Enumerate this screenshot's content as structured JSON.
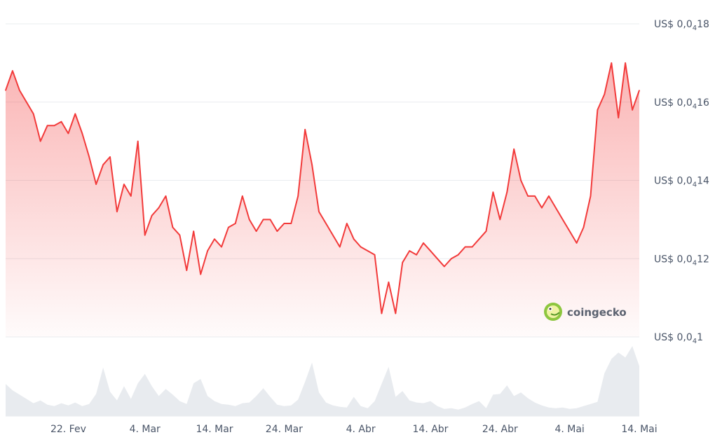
{
  "chart_data": {
    "type": "area",
    "currency_prefix": "US$",
    "y_ticks": [
      {
        "value": 1.8e-05,
        "prefix": "US$ 0,0",
        "sub": "4",
        "digits": "18"
      },
      {
        "value": 1.6e-05,
        "prefix": "US$ 0,0",
        "sub": "4",
        "digits": "16"
      },
      {
        "value": 1.4e-05,
        "prefix": "US$ 0,0",
        "sub": "4",
        "digits": "14"
      },
      {
        "value": 1.2e-05,
        "prefix": "US$ 0,0",
        "sub": "4",
        "digits": "12"
      },
      {
        "value": 1e-05,
        "prefix": "US$ 0,0",
        "sub": "4",
        "digits": "1"
      }
    ],
    "ylim": [
      1e-05,
      1.8e-05
    ],
    "x_tick_labels": [
      "22. Fev",
      "4. Mar",
      "14. Mar",
      "24. Mar",
      "4. Abr",
      "14. Abr",
      "24. Abr",
      "4. Mai",
      "14. Mai"
    ],
    "x_tick_dates": [
      "2024-02-22",
      "2024-03-04",
      "2024-03-14",
      "2024-03-24",
      "2024-04-04",
      "2024-04-14",
      "2024-04-24",
      "2024-05-04",
      "2024-05-14"
    ],
    "xlim": [
      "2024-02-13",
      "2024-05-14"
    ],
    "grid": true,
    "series": [
      {
        "color": "#f23a3a",
        "x": [
          "2024-02-13",
          "2024-02-14",
          "2024-02-15",
          "2024-02-16",
          "2024-02-17",
          "2024-02-18",
          "2024-02-19",
          "2024-02-20",
          "2024-02-21",
          "2024-02-22",
          "2024-02-23",
          "2024-02-24",
          "2024-02-25",
          "2024-02-26",
          "2024-02-27",
          "2024-02-28",
          "2024-02-29",
          "2024-03-01",
          "2024-03-02",
          "2024-03-03",
          "2024-03-04",
          "2024-03-05",
          "2024-03-06",
          "2024-03-07",
          "2024-03-08",
          "2024-03-09",
          "2024-03-10",
          "2024-03-11",
          "2024-03-12",
          "2024-03-13",
          "2024-03-14",
          "2024-03-15",
          "2024-03-16",
          "2024-03-17",
          "2024-03-18",
          "2024-03-19",
          "2024-03-20",
          "2024-03-21",
          "2024-03-22",
          "2024-03-23",
          "2024-03-24",
          "2024-03-25",
          "2024-03-26",
          "2024-03-27",
          "2024-03-28",
          "2024-03-29",
          "2024-03-30",
          "2024-03-31",
          "2024-04-01",
          "2024-04-02",
          "2024-04-03",
          "2024-04-04",
          "2024-04-05",
          "2024-04-06",
          "2024-04-07",
          "2024-04-08",
          "2024-04-09",
          "2024-04-10",
          "2024-04-11",
          "2024-04-12",
          "2024-04-13",
          "2024-04-14",
          "2024-04-15",
          "2024-04-16",
          "2024-04-17",
          "2024-04-18",
          "2024-04-19",
          "2024-04-20",
          "2024-04-21",
          "2024-04-22",
          "2024-04-23",
          "2024-04-24",
          "2024-04-25",
          "2024-04-26",
          "2024-04-27",
          "2024-04-28",
          "2024-04-29",
          "2024-04-30",
          "2024-05-01",
          "2024-05-02",
          "2024-05-03",
          "2024-05-04",
          "2024-05-05",
          "2024-05-06",
          "2024-05-07",
          "2024-05-08",
          "2024-05-09",
          "2024-05-10",
          "2024-05-11",
          "2024-05-12",
          "2024-05-13",
          "2024-05-14"
        ],
        "values": [
          1.63e-05,
          1.68e-05,
          1.63e-05,
          1.6e-05,
          1.57e-05,
          1.5e-05,
          1.54e-05,
          1.54e-05,
          1.55e-05,
          1.52e-05,
          1.57e-05,
          1.52e-05,
          1.46e-05,
          1.39e-05,
          1.44e-05,
          1.46e-05,
          1.32e-05,
          1.39e-05,
          1.36e-05,
          1.5e-05,
          1.26e-05,
          1.31e-05,
          1.33e-05,
          1.36e-05,
          1.28e-05,
          1.26e-05,
          1.17e-05,
          1.27e-05,
          1.16e-05,
          1.22e-05,
          1.25e-05,
          1.23e-05,
          1.28e-05,
          1.29e-05,
          1.36e-05,
          1.3e-05,
          1.27e-05,
          1.3e-05,
          1.3e-05,
          1.27e-05,
          1.29e-05,
          1.29e-05,
          1.36e-05,
          1.53e-05,
          1.44e-05,
          1.32e-05,
          1.29e-05,
          1.26e-05,
          1.23e-05,
          1.29e-05,
          1.25e-05,
          1.23e-05,
          1.22e-05,
          1.21e-05,
          1.06e-05,
          1.14e-05,
          1.06e-05,
          1.19e-05,
          1.22e-05,
          1.21e-05,
          1.24e-05,
          1.22e-05,
          1.2e-05,
          1.18e-05,
          1.2e-05,
          1.21e-05,
          1.23e-05,
          1.23e-05,
          1.25e-05,
          1.27e-05,
          1.37e-05,
          1.3e-05,
          1.37e-05,
          1.48e-05,
          1.4e-05,
          1.36e-05,
          1.36e-05,
          1.33e-05,
          1.36e-05,
          1.33e-05,
          1.3e-05,
          1.27e-05,
          1.24e-05,
          1.28e-05,
          1.36e-05,
          1.58e-05,
          1.62e-05,
          1.7e-05,
          1.56e-05,
          1.7e-05,
          1.58e-05,
          1.63e-05
        ]
      }
    ],
    "volume": {
      "color": "#e8ebef",
      "values": [
        0.45,
        0.36,
        0.3,
        0.24,
        0.18,
        0.22,
        0.16,
        0.14,
        0.18,
        0.15,
        0.19,
        0.14,
        0.17,
        0.31,
        0.68,
        0.34,
        0.22,
        0.42,
        0.24,
        0.46,
        0.59,
        0.42,
        0.28,
        0.38,
        0.3,
        0.21,
        0.17,
        0.46,
        0.52,
        0.28,
        0.21,
        0.17,
        0.16,
        0.14,
        0.18,
        0.19,
        0.28,
        0.39,
        0.27,
        0.16,
        0.14,
        0.15,
        0.23,
        0.48,
        0.75,
        0.33,
        0.19,
        0.15,
        0.13,
        0.12,
        0.27,
        0.14,
        0.11,
        0.21,
        0.45,
        0.69,
        0.27,
        0.35,
        0.22,
        0.19,
        0.18,
        0.21,
        0.14,
        0.1,
        0.11,
        0.09,
        0.12,
        0.17,
        0.21,
        0.11,
        0.3,
        0.31,
        0.43,
        0.28,
        0.33,
        0.25,
        0.19,
        0.15,
        0.12,
        0.11,
        0.12,
        0.1,
        0.11,
        0.14,
        0.17,
        0.2,
        0.6,
        0.8,
        0.89,
        0.82,
        0.98,
        0.7
      ]
    }
  },
  "watermark": {
    "label": "coingecko",
    "icon": "coingecko-gecko-icon"
  }
}
